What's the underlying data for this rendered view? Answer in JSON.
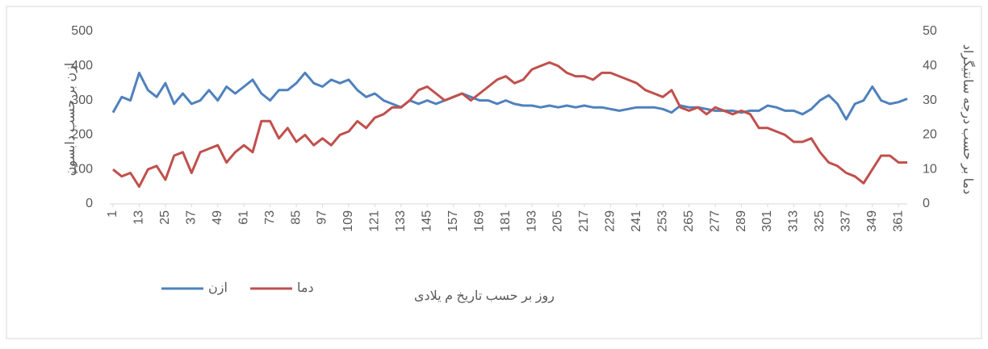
{
  "chart_data": {
    "type": "line",
    "x_title": "روز بر حسب تاریخ م یلادی",
    "y_title": "ازن بر حسب دابسون",
    "y2_title": "دما بر حسب درجه سانتیگراد",
    "x": [
      1,
      5,
      9,
      13,
      17,
      21,
      25,
      29,
      33,
      37,
      41,
      45,
      49,
      53,
      57,
      61,
      65,
      69,
      73,
      77,
      81,
      85,
      89,
      93,
      97,
      101,
      105,
      109,
      113,
      117,
      121,
      125,
      129,
      133,
      137,
      141,
      145,
      149,
      153,
      157,
      161,
      165,
      169,
      173,
      177,
      181,
      185,
      189,
      193,
      197,
      201,
      205,
      209,
      213,
      217,
      221,
      225,
      229,
      233,
      237,
      241,
      245,
      249,
      253,
      257,
      261,
      265,
      269,
      273,
      277,
      281,
      285,
      289,
      293,
      297,
      301,
      305,
      309,
      313,
      317,
      321,
      325,
      329,
      333,
      337,
      341,
      345,
      349,
      353,
      357,
      361,
      365
    ],
    "xlim": [
      1,
      365
    ],
    "xticks": [
      1,
      13,
      25,
      37,
      49,
      61,
      73,
      85,
      97,
      109,
      121,
      133,
      145,
      157,
      169,
      181,
      193,
      205,
      217,
      229,
      241,
      253,
      265,
      277,
      289,
      301,
      313,
      325,
      337,
      349,
      361
    ],
    "ylim": [
      0,
      500
    ],
    "yticks": [
      0,
      100,
      200,
      300,
      400,
      500
    ],
    "y2lim": [
      0,
      50
    ],
    "y2ticks": [
      0,
      10,
      20,
      30,
      40,
      50
    ],
    "legend": "bottom-left",
    "series": [
      {
        "name": "ازن",
        "color": "#4f81bd",
        "values": [
          265,
          310,
          300,
          380,
          330,
          310,
          350,
          290,
          320,
          290,
          300,
          330,
          300,
          340,
          320,
          340,
          360,
          320,
          300,
          330,
          330,
          350,
          380,
          350,
          340,
          360,
          350,
          360,
          330,
          310,
          320,
          300,
          290,
          280,
          300,
          290,
          300,
          290,
          300,
          310,
          320,
          310,
          300,
          300,
          290,
          300,
          290,
          285,
          285,
          280,
          285,
          280,
          285,
          280,
          285,
          280,
          280,
          275,
          270,
          275,
          280,
          280,
          280,
          275,
          265,
          285,
          280,
          280,
          275,
          270,
          270,
          270,
          265,
          270,
          270,
          285,
          280,
          270,
          270,
          260,
          275,
          300,
          315,
          290,
          245,
          290,
          300,
          340,
          300,
          290,
          295,
          305
        ]
      },
      {
        "name": "دما",
        "color": "#c0504d",
        "axis": "y2",
        "values": [
          10,
          8,
          9,
          5,
          10,
          11,
          7,
          14,
          15,
          9,
          15,
          16,
          17,
          12,
          15,
          17,
          15,
          24,
          24,
          19,
          22,
          18,
          20,
          17,
          19,
          17,
          20,
          21,
          24,
          22,
          25,
          26,
          28,
          28,
          30,
          33,
          34,
          32,
          30,
          31,
          32,
          30,
          32,
          34,
          36,
          37,
          35,
          36,
          39,
          40,
          41,
          40,
          38,
          37,
          37,
          36,
          38,
          38,
          37,
          36,
          35,
          33,
          32,
          31,
          33,
          28,
          27,
          28,
          26,
          28,
          27,
          26,
          27,
          26,
          22,
          22,
          21,
          20,
          18,
          18,
          19,
          15,
          12,
          11,
          9,
          8,
          6,
          10,
          14,
          14,
          12,
          12
        ]
      }
    ]
  }
}
